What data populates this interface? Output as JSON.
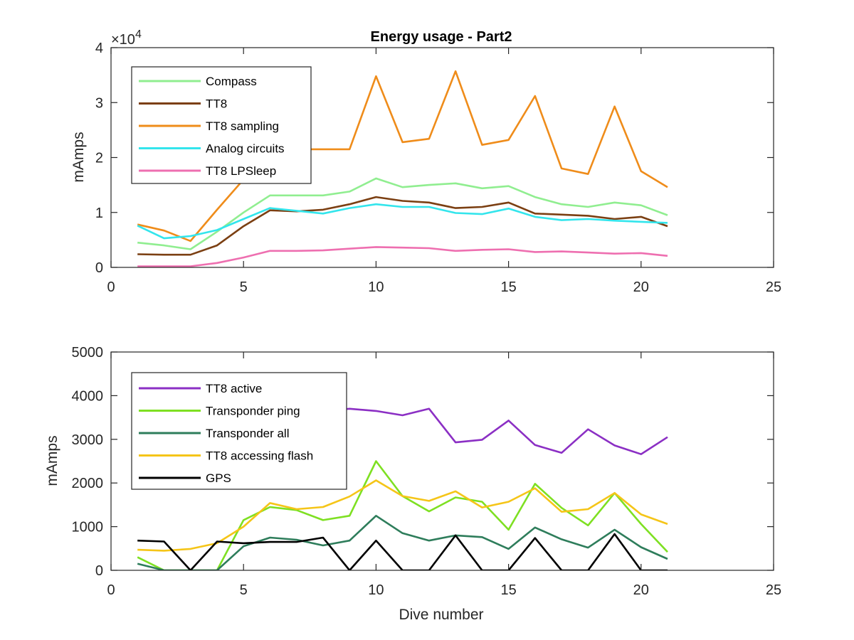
{
  "chart_data": [
    {
      "type": "line",
      "title": "Energy usage - Part2",
      "xlabel": "",
      "ylabel": "mAmps",
      "xlim": [
        0,
        25
      ],
      "ylim": [
        0,
        40000
      ],
      "x_ticks": [
        0,
        5,
        10,
        15,
        20,
        25
      ],
      "y_ticks": [
        0,
        10000,
        20000,
        30000,
        40000
      ],
      "x_tick_labels": [
        "0",
        "5",
        "10",
        "15",
        "20",
        "25"
      ],
      "y_tick_labels": [
        "0",
        "1",
        "2",
        "3",
        "4"
      ],
      "y_multiplier": "×10",
      "y_multiplier_exp": "4",
      "grid": false,
      "legend_position": "top-left",
      "x": [
        1,
        2,
        3,
        4,
        5,
        6,
        7,
        8,
        9,
        10,
        11,
        12,
        13,
        14,
        15,
        16,
        17,
        18,
        19,
        20,
        21
      ],
      "series": [
        {
          "name": "Compass",
          "color": "#90ee90",
          "values": [
            4500,
            4000,
            3300,
            6500,
            10000,
            13100,
            13100,
            13100,
            13800,
            16200,
            14600,
            15000,
            15300,
            14400,
            14800,
            12800,
            11500,
            11000,
            11800,
            11300,
            9500
          ]
        },
        {
          "name": "TT8",
          "color": "#7b3f12",
          "values": [
            2400,
            2300,
            2300,
            4000,
            7500,
            10400,
            10200,
            10500,
            11500,
            12800,
            12100,
            11800,
            10800,
            11000,
            11800,
            9800,
            9600,
            9400,
            8800,
            9200,
            7500
          ]
        },
        {
          "name": "TT8 sampling",
          "color": "#ef8c1a",
          "values": [
            7800,
            6700,
            4800,
            10500,
            16000,
            21000,
            21500,
            21500,
            21500,
            34800,
            22800,
            23400,
            35700,
            22300,
            23200,
            31200,
            18000,
            17000,
            29300,
            17500,
            14600
          ]
        },
        {
          "name": "Analog circuits",
          "color": "#33e5ec",
          "values": [
            7600,
            5300,
            5700,
            6800,
            8800,
            10800,
            10300,
            9800,
            10800,
            11500,
            11000,
            11000,
            9900,
            9700,
            10700,
            9200,
            8600,
            8800,
            8500,
            8300,
            8100
          ]
        },
        {
          "name": "TT8 LPSleep",
          "color": "#ee6fb0",
          "values": [
            200,
            200,
            200,
            800,
            1800,
            3000,
            3000,
            3100,
            3400,
            3700,
            3600,
            3500,
            3000,
            3200,
            3300,
            2800,
            2900,
            2700,
            2500,
            2600,
            2100
          ]
        }
      ]
    },
    {
      "type": "line",
      "title": "",
      "xlabel": "Dive number",
      "ylabel": "mAmps",
      "xlim": [
        0,
        25
      ],
      "ylim": [
        0,
        5000
      ],
      "x_ticks": [
        0,
        5,
        10,
        15,
        20,
        25
      ],
      "y_ticks": [
        0,
        1000,
        2000,
        3000,
        4000,
        5000
      ],
      "x_tick_labels": [
        "0",
        "5",
        "10",
        "15",
        "20",
        "25"
      ],
      "y_tick_labels": [
        "0",
        "1000",
        "2000",
        "3000",
        "4000",
        "5000"
      ],
      "grid": false,
      "legend_position": "top-left",
      "x": [
        1,
        2,
        3,
        4,
        5,
        6,
        7,
        8,
        9,
        10,
        11,
        12,
        13,
        14,
        15,
        16,
        17,
        18,
        19,
        20,
        21
      ],
      "series": [
        {
          "name": "TT8 active",
          "color": "#8b2fc4",
          "values": [
            2900,
            3000,
            3200,
            3300,
            3450,
            3550,
            3600,
            3650,
            3700,
            3650,
            3550,
            3700,
            2930,
            2990,
            3430,
            2870,
            2690,
            3230,
            2860,
            2660,
            3050
          ]
        },
        {
          "name": "Transponder ping",
          "color": "#7ee022",
          "values": [
            300,
            0,
            0,
            0,
            1150,
            1450,
            1380,
            1150,
            1250,
            2500,
            1700,
            1350,
            1670,
            1570,
            930,
            1980,
            1430,
            1030,
            1770,
            1060,
            420
          ]
        },
        {
          "name": "Transponder all",
          "color": "#2e7d5b",
          "values": [
            150,
            0,
            0,
            0,
            550,
            750,
            700,
            570,
            680,
            1250,
            850,
            680,
            800,
            760,
            490,
            980,
            710,
            520,
            930,
            530,
            260
          ]
        },
        {
          "name": "TT8 accessing flash",
          "color": "#f5c518",
          "values": [
            470,
            450,
            490,
            620,
            1000,
            1540,
            1400,
            1450,
            1690,
            2060,
            1700,
            1590,
            1810,
            1440,
            1570,
            1880,
            1340,
            1400,
            1770,
            1280,
            1060
          ]
        },
        {
          "name": "GPS",
          "color": "#000000",
          "values": [
            680,
            660,
            0,
            660,
            620,
            650,
            650,
            750,
            0,
            680,
            0,
            0,
            800,
            0,
            0,
            740,
            0,
            0,
            830,
            0,
            0
          ]
        }
      ]
    }
  ]
}
